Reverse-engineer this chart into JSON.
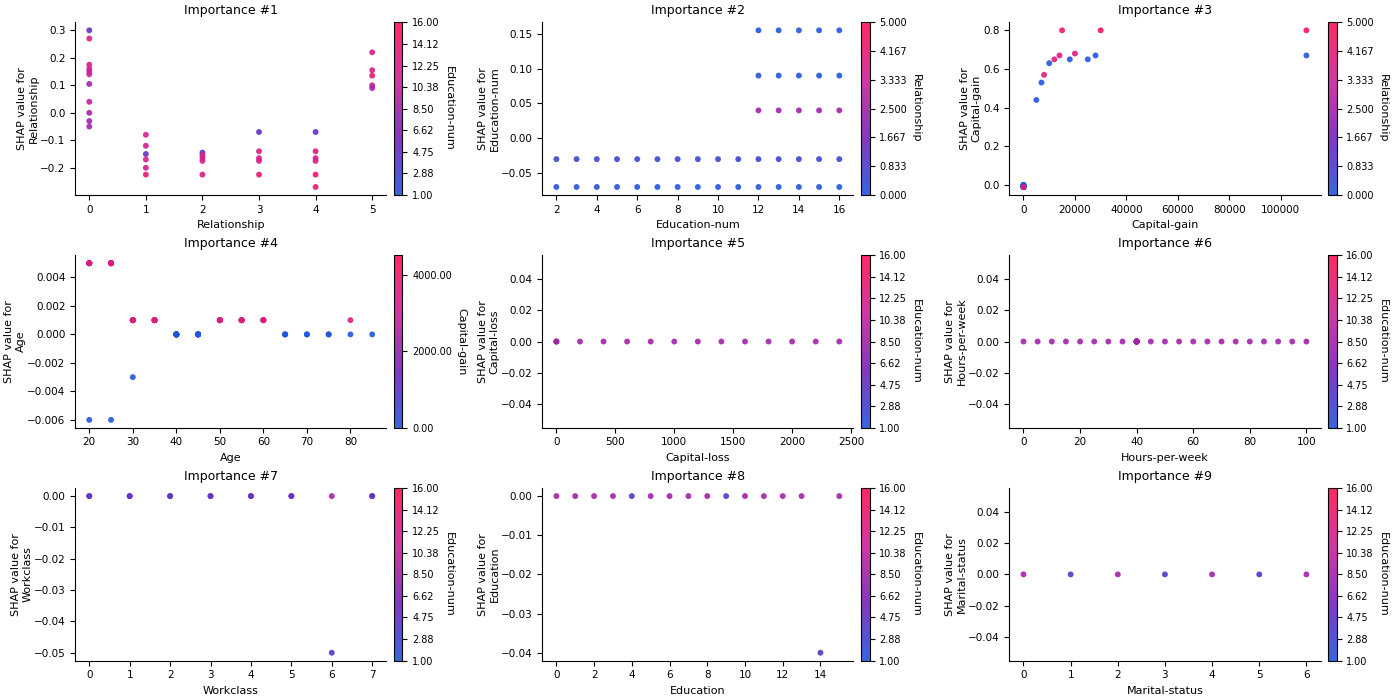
{
  "subplots": [
    {
      "title": "Importance #1",
      "xlabel": "Relationship",
      "ylabel": "SHAP value for\nRelationship",
      "colorbar_label": "Education-num",
      "colorbar_ticks": [
        1.0,
        2.88,
        4.75,
        6.62,
        8.5,
        10.38,
        12.25,
        14.12,
        16.0
      ],
      "colorbar_vmin": 1.0,
      "colorbar_vmax": 16.0,
      "x": [
        0,
        0,
        0,
        0,
        0,
        0,
        0,
        0,
        0,
        0,
        0,
        1,
        1,
        1,
        1,
        1,
        1,
        2,
        2,
        2,
        2,
        2,
        3,
        3,
        3,
        3,
        3,
        4,
        4,
        4,
        4,
        4,
        4,
        5,
        5,
        5,
        5,
        5
      ],
      "y": [
        0.3,
        0.27,
        0.175,
        0.16,
        0.15,
        0.14,
        0.105,
        0.04,
        0.0,
        -0.03,
        -0.05,
        -0.08,
        -0.12,
        -0.15,
        -0.17,
        -0.2,
        -0.225,
        -0.145,
        -0.155,
        -0.165,
        -0.175,
        -0.225,
        -0.07,
        -0.14,
        -0.165,
        -0.175,
        -0.225,
        -0.07,
        -0.14,
        -0.165,
        -0.175,
        -0.225,
        -0.27,
        0.22,
        0.155,
        0.135,
        0.1,
        0.09
      ],
      "c": [
        4.75,
        13.0,
        12.25,
        12.0,
        10.38,
        11.5,
        8.5,
        10.0,
        9.0,
        8.5,
        8.5,
        12.0,
        12.0,
        4.75,
        12.0,
        12.0,
        14.12,
        4.75,
        12.25,
        12.0,
        12.0,
        12.25,
        4.75,
        12.25,
        12.0,
        12.0,
        14.12,
        4.75,
        12.25,
        12.0,
        12.0,
        14.12,
        14.12,
        12.5,
        12.0,
        14.12,
        10.38,
        9.0
      ]
    },
    {
      "title": "Importance #2",
      "xlabel": "Education-num",
      "ylabel": "SHAP value for\nEducation-num",
      "colorbar_label": "Relationship",
      "colorbar_ticks": [
        0.0,
        0.833,
        1.667,
        2.5,
        3.333,
        4.167,
        5.0
      ],
      "colorbar_vmin": 0.0,
      "colorbar_vmax": 5.0,
      "x": [
        2,
        3,
        4,
        5,
        6,
        7,
        8,
        9,
        10,
        11,
        12,
        13,
        14,
        15,
        16,
        2,
        3,
        4,
        5,
        6,
        7,
        8,
        9,
        10,
        11,
        12,
        13,
        14,
        15,
        16,
        12,
        13,
        14,
        15,
        16,
        12,
        13,
        14,
        15,
        16,
        12,
        13,
        14,
        15,
        16
      ],
      "y": [
        -0.03,
        -0.03,
        -0.03,
        -0.03,
        -0.03,
        -0.03,
        -0.03,
        -0.03,
        -0.03,
        -0.03,
        -0.03,
        -0.03,
        -0.03,
        -0.03,
        -0.03,
        -0.07,
        -0.07,
        -0.07,
        -0.07,
        -0.07,
        -0.07,
        -0.07,
        -0.07,
        -0.07,
        -0.07,
        -0.07,
        -0.07,
        -0.07,
        -0.07,
        -0.07,
        0.04,
        0.04,
        0.04,
        0.04,
        0.04,
        0.09,
        0.09,
        0.09,
        0.09,
        0.09,
        0.155,
        0.155,
        0.155,
        0.155,
        0.155
      ],
      "c": [
        0.5,
        0.5,
        0.5,
        0.5,
        0.5,
        0.5,
        0.5,
        0.5,
        0.5,
        0.5,
        0.5,
        0.5,
        0.5,
        0.5,
        0.5,
        0.0,
        0.0,
        0.0,
        0.0,
        0.0,
        0.0,
        0.0,
        0.0,
        0.0,
        0.0,
        0.0,
        0.0,
        0.0,
        0.0,
        0.0,
        2.5,
        2.5,
        2.5,
        2.5,
        2.5,
        0.0,
        0.0,
        0.0,
        0.0,
        0.0,
        0.0,
        0.0,
        0.0,
        0.0,
        0.0
      ]
    },
    {
      "title": "Importance #3",
      "xlabel": "Capital-gain",
      "ylabel": "SHAP value for\nCapital-gain",
      "colorbar_label": "Relationship",
      "colorbar_ticks": [
        0.0,
        0.833,
        1.667,
        2.5,
        3.333,
        4.167,
        5.0
      ],
      "colorbar_vmin": 0.0,
      "colorbar_vmax": 5.0,
      "x": [
        0,
        0,
        0,
        0,
        0,
        0,
        0,
        0,
        0,
        0,
        0,
        0,
        0,
        0,
        0,
        5000,
        7000,
        8000,
        10000,
        12000,
        14000,
        15000,
        18000,
        20000,
        25000,
        28000,
        30000,
        110000,
        110000
      ],
      "y": [
        0.0,
        0.0,
        0.0,
        0.0,
        -0.01,
        -0.01,
        -0.01,
        -0.01,
        -0.01,
        -0.01,
        -0.01,
        -0.01,
        -0.01,
        -0.01,
        -0.01,
        0.44,
        0.53,
        0.57,
        0.63,
        0.65,
        0.67,
        0.8,
        0.65,
        0.68,
        0.65,
        0.67,
        0.8,
        0.67,
        0.8
      ],
      "c": [
        0.0,
        0.0,
        0.0,
        0.0,
        0.0,
        0.0,
        0.0,
        0.0,
        0.0,
        0.0,
        0.0,
        0.0,
        0.0,
        0.0,
        4.5,
        0.0,
        0.0,
        4.0,
        0.0,
        4.0,
        4.0,
        4.5,
        0.0,
        4.0,
        0.0,
        0.0,
        4.5,
        0.0,
        4.5
      ]
    },
    {
      "title": "Importance #4",
      "xlabel": "Age",
      "ylabel": "SHAP value for\nAge",
      "colorbar_label": "Capital-gain",
      "colorbar_ticks": [
        0,
        2000,
        4000
      ],
      "colorbar_vmin": 0,
      "colorbar_vmax": 4500,
      "x": [
        20,
        20,
        20,
        20,
        20,
        20,
        20,
        25,
        25,
        25,
        25,
        25,
        25,
        25,
        25,
        30,
        30,
        30,
        30,
        30,
        30,
        30,
        30,
        35,
        35,
        35,
        35,
        35,
        35,
        35,
        40,
        40,
        40,
        40,
        40,
        40,
        40,
        40,
        40,
        40,
        40,
        40,
        45,
        45,
        45,
        45,
        45,
        45,
        45,
        50,
        50,
        50,
        50,
        50,
        50,
        55,
        55,
        55,
        55,
        55,
        60,
        60,
        60,
        60,
        65,
        65,
        65,
        70,
        70,
        75,
        75,
        80,
        80,
        85,
        20,
        25,
        30
      ],
      "y": [
        0.005,
        0.005,
        0.005,
        0.005,
        0.005,
        0.005,
        0.005,
        0.005,
        0.005,
        0.005,
        0.005,
        0.005,
        0.005,
        0.005,
        0.005,
        0.001,
        0.001,
        0.001,
        0.001,
        0.001,
        0.001,
        0.001,
        0.001,
        0.001,
        0.001,
        0.001,
        0.001,
        0.001,
        0.001,
        0.001,
        0.0,
        0.0,
        0.0,
        0.0,
        0.0,
        0.0,
        0.0,
        0.0,
        0.0,
        0.0,
        0.0,
        0.0,
        0.0,
        0.0,
        0.0,
        0.0,
        0.0,
        0.0,
        0.0,
        0.001,
        0.001,
        0.001,
        0.001,
        0.001,
        0.001,
        0.001,
        0.001,
        0.001,
        0.001,
        0.001,
        0.001,
        0.001,
        0.001,
        0.001,
        0.0,
        0.0,
        0.0,
        0.0,
        0.0,
        0.0,
        0.0,
        0.001,
        0.0,
        0.0,
        -0.006,
        -0.006,
        -0.003
      ],
      "c": [
        3500,
        3500,
        3500,
        3500,
        3500,
        3500,
        3500,
        3500,
        3500,
        3500,
        3500,
        3500,
        3500,
        3500,
        3500,
        3500,
        3500,
        3500,
        3500,
        3500,
        3500,
        3500,
        3500,
        3500,
        3500,
        3500,
        3500,
        3500,
        3500,
        3500,
        0,
        0,
        0,
        0,
        0,
        0,
        0,
        0,
        0,
        0,
        0,
        0,
        0,
        0,
        0,
        0,
        0,
        0,
        0,
        3500,
        3500,
        3500,
        3500,
        3500,
        3500,
        3500,
        3500,
        3500,
        3500,
        3500,
        3500,
        3500,
        3500,
        3500,
        0,
        0,
        0,
        0,
        0,
        0,
        0,
        3500,
        0,
        0,
        0,
        0,
        0
      ]
    },
    {
      "title": "Importance #5",
      "xlabel": "Capital-loss",
      "ylabel": "SHAP value for\nCapital-loss",
      "colorbar_label": "Education-num",
      "colorbar_ticks": [
        1.0,
        2.88,
        4.75,
        6.62,
        8.5,
        10.38,
        12.25,
        14.12,
        16.0
      ],
      "colorbar_vmin": 1.0,
      "colorbar_vmax": 16.0,
      "x": [
        0,
        0,
        0,
        200,
        400,
        600,
        800,
        1000,
        1200,
        1400,
        1600,
        1800,
        2000,
        2200,
        2400
      ],
      "y": [
        0.0,
        0.0,
        0.0,
        0.0,
        0.0,
        0.0,
        0.0,
        0.0,
        0.0,
        0.0,
        0.0,
        0.0,
        0.0,
        0.0,
        0.0
      ],
      "c": [
        8.5,
        8.5,
        8.5,
        8.5,
        8.5,
        8.5,
        8.5,
        8.5,
        8.5,
        8.5,
        8.5,
        8.5,
        8.5,
        8.5,
        8.5
      ]
    },
    {
      "title": "Importance #6",
      "xlabel": "Hours-per-week",
      "ylabel": "SHAP value for\nHours-per-week",
      "colorbar_label": "Education-num",
      "colorbar_ticks": [
        1.0,
        2.88,
        4.75,
        6.62,
        8.5,
        10.38,
        12.25,
        14.12,
        16.0
      ],
      "colorbar_vmin": 1.0,
      "colorbar_vmax": 16.0,
      "x": [
        0,
        5,
        10,
        15,
        20,
        25,
        30,
        35,
        40,
        40,
        40,
        40,
        40,
        40,
        40,
        40,
        40,
        40,
        40,
        40,
        45,
        50,
        55,
        60,
        65,
        70,
        75,
        80,
        85,
        90,
        95,
        100
      ],
      "y": [
        0.0,
        0.0,
        0.0,
        0.0,
        0.0,
        0.0,
        0.0,
        0.0,
        0.0,
        0.0,
        0.0,
        0.0,
        0.0,
        0.0,
        0.0,
        0.0,
        0.0,
        0.0,
        0.0,
        0.0,
        0.0,
        0.0,
        0.0,
        0.0,
        0.0,
        0.0,
        0.0,
        0.0,
        0.0,
        0.0,
        0.0,
        0.0
      ],
      "c": [
        8.5,
        8.5,
        8.5,
        8.5,
        8.5,
        8.5,
        8.5,
        8.5,
        8.5,
        8.5,
        13.0,
        4.0,
        8.5,
        8.5,
        8.5,
        8.5,
        8.5,
        8.5,
        8.5,
        8.5,
        8.5,
        8.5,
        8.5,
        8.5,
        8.5,
        8.5,
        8.5,
        8.5,
        8.5,
        8.5,
        8.5,
        8.5
      ]
    },
    {
      "title": "Importance #7",
      "xlabel": "Workclass",
      "ylabel": "SHAP value for\nWorkclass",
      "colorbar_label": "Education-num",
      "colorbar_ticks": [
        1.0,
        2.88,
        4.75,
        6.62,
        8.5,
        10.38,
        12.25,
        14.12,
        16.0
      ],
      "colorbar_vmin": 1.0,
      "colorbar_vmax": 16.0,
      "x": [
        0,
        0,
        1,
        1,
        2,
        2,
        3,
        3,
        4,
        4,
        5,
        5,
        6,
        6,
        7,
        7
      ],
      "y": [
        0.0,
        0.0,
        0.0,
        0.0,
        0.0,
        0.0,
        0.0,
        0.0,
        0.0,
        0.0,
        0.0,
        0.0,
        0.0,
        -0.05,
        0.0,
        0.0
      ],
      "c": [
        8.5,
        4.0,
        8.5,
        4.0,
        8.5,
        4.0,
        8.5,
        4.0,
        8.5,
        4.0,
        8.5,
        4.0,
        8.5,
        4.0,
        8.5,
        4.0
      ]
    },
    {
      "title": "Importance #8",
      "xlabel": "Education",
      "ylabel": "SHAP value for\nEducation",
      "colorbar_label": "Education-num",
      "colorbar_ticks": [
        1.0,
        2.88,
        4.75,
        6.62,
        8.5,
        10.38,
        12.25,
        14.12,
        16.0
      ],
      "colorbar_vmin": 1.0,
      "colorbar_vmax": 16.0,
      "x": [
        0,
        1,
        2,
        3,
        4,
        5,
        6,
        7,
        8,
        9,
        10,
        11,
        12,
        13,
        14,
        15
      ],
      "y": [
        0.0,
        0.0,
        0.0,
        0.0,
        0.0,
        0.0,
        0.0,
        0.0,
        0.0,
        0.0,
        0.0,
        0.0,
        0.0,
        0.0,
        -0.04,
        0.0
      ],
      "c": [
        8.5,
        8.5,
        8.5,
        8.5,
        4.0,
        8.5,
        8.5,
        8.5,
        8.5,
        4.0,
        8.5,
        8.5,
        8.5,
        8.5,
        4.0,
        8.5
      ]
    },
    {
      "title": "Importance #9",
      "xlabel": "Marital-status",
      "ylabel": "SHAP value for\nMarital-status",
      "colorbar_label": "Education-num",
      "colorbar_ticks": [
        1.0,
        2.88,
        4.75,
        6.62,
        8.5,
        10.38,
        12.25,
        14.12,
        16.0
      ],
      "colorbar_vmin": 1.0,
      "colorbar_vmax": 16.0,
      "x": [
        0,
        1,
        2,
        3,
        4,
        5,
        6
      ],
      "y": [
        0.0,
        0.0,
        0.0,
        0.0,
        0.0,
        0.0,
        0.0
      ],
      "c": [
        8.5,
        4.0,
        8.5,
        4.0,
        8.5,
        4.0,
        8.5
      ]
    }
  ]
}
